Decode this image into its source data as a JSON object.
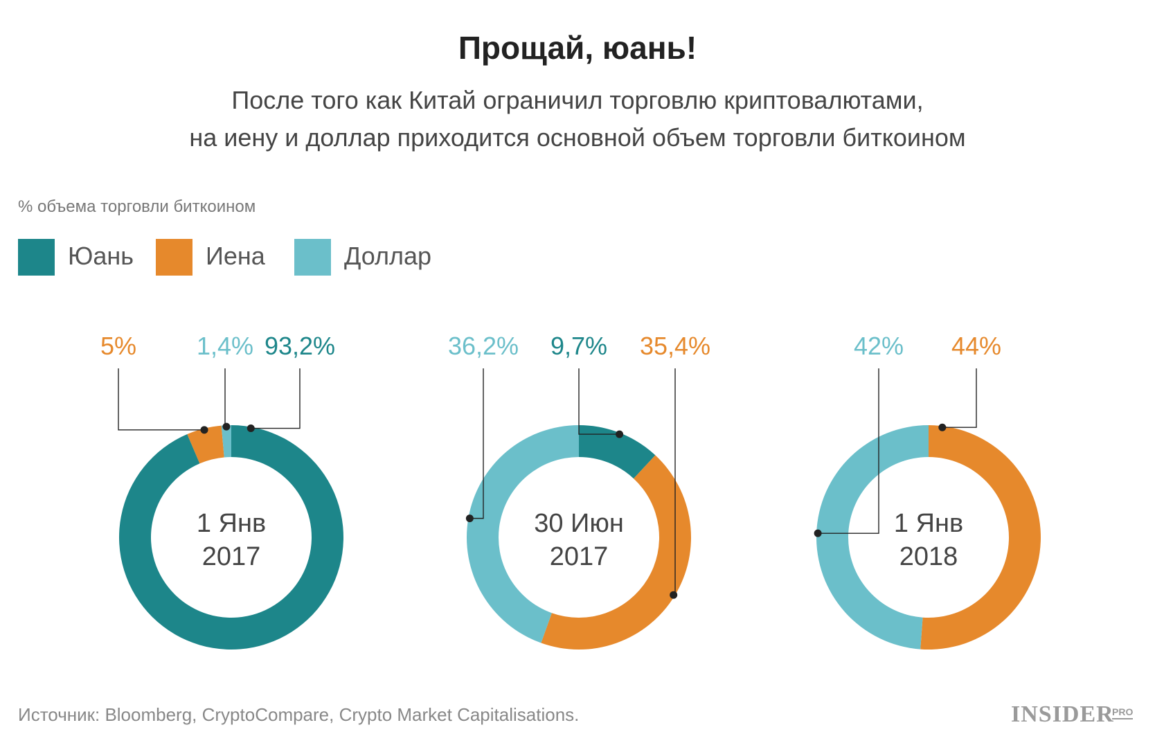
{
  "title": "Прощай, юань!",
  "subtitle_line1": "После того как Китай ограничил торговлю криптовалютами,",
  "subtitle_line2": "на иену и доллар приходится основной объем торговли биткоином",
  "unit_label": "% объема торговли биткоином",
  "colors": {
    "yuan": "#1d868a",
    "yen": "#e6892c",
    "dollar": "#6bbfca",
    "leader": "#222222"
  },
  "legend": [
    {
      "label": "Юань",
      "key": "yuan"
    },
    {
      "label": "Иена",
      "key": "yen"
    },
    {
      "label": "Доллар",
      "key": "dollar"
    }
  ],
  "chart_data": [
    {
      "type": "pie",
      "center_label": [
        "1 Янв",
        "2017"
      ],
      "slices": [
        {
          "series": "Юань",
          "key": "yuan",
          "value": 93.2,
          "label": "93,2%"
        },
        {
          "series": "Иена",
          "key": "yen",
          "value": 5,
          "label": "5%"
        },
        {
          "series": "Доллар",
          "key": "dollar",
          "value": 1.4,
          "label": "1,4%"
        }
      ]
    },
    {
      "type": "pie",
      "center_label": [
        "30 Июн",
        "2017"
      ],
      "slices": [
        {
          "series": "Юань",
          "key": "yuan",
          "value": 9.7,
          "label": "9,7%"
        },
        {
          "series": "Иена",
          "key": "yen",
          "value": 35.4,
          "label": "35,4%"
        },
        {
          "series": "Доллар",
          "key": "dollar",
          "value": 36.2,
          "label": "36,2%"
        }
      ]
    },
    {
      "type": "pie",
      "center_label": [
        "1 Янв",
        "2018"
      ],
      "slices": [
        {
          "series": "Иена",
          "key": "yen",
          "value": 44,
          "label": "44%"
        },
        {
          "series": "Доллар",
          "key": "dollar",
          "value": 42,
          "label": "42%"
        }
      ]
    }
  ],
  "source": "Источник: Bloomberg, CryptoCompare, Crypto Market Capitalisations.",
  "brand": "INSIDER",
  "brand_suffix": "PRO"
}
